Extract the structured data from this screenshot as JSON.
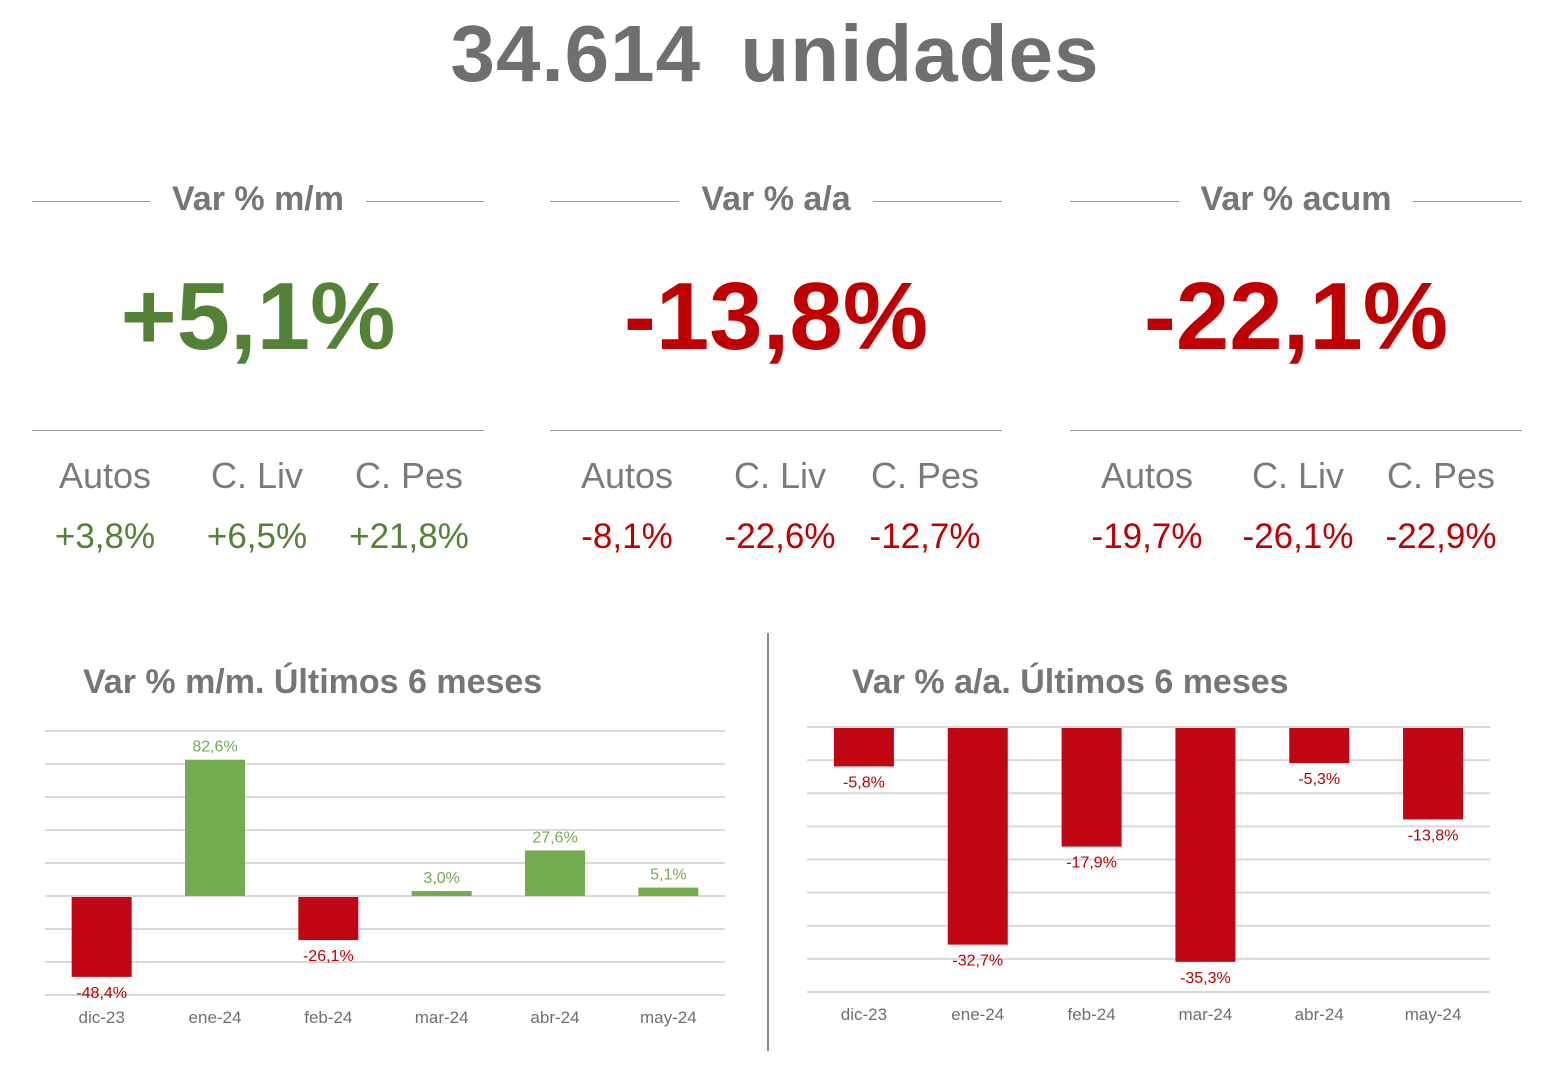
{
  "header": {
    "title": "34.614  unidades"
  },
  "panels": [
    {
      "title": "Var % m/m",
      "value": "+5,1%",
      "tone": "green",
      "items": [
        {
          "label": "Autos",
          "value": "+3,8%"
        },
        {
          "label": "C. Liv",
          "value": "+6,5%"
        },
        {
          "label": "C. Pes",
          "value": "+21,8%"
        }
      ]
    },
    {
      "title": "Var % a/a",
      "value": "-13,8%",
      "tone": "red",
      "items": [
        {
          "label": "Autos",
          "value": "-8,1%"
        },
        {
          "label": "C. Liv",
          "value": "-22,6%"
        },
        {
          "label": "C. Pes",
          "value": "-12,7%"
        }
      ]
    },
    {
      "title": "Var % acum",
      "value": "-22,1%",
      "tone": "red",
      "items": [
        {
          "label": "Autos",
          "value": "-19,7%"
        },
        {
          "label": "C. Liv",
          "value": "-26,1%"
        },
        {
          "label": "C. Pes",
          "value": "-22,9%"
        }
      ]
    }
  ],
  "colors": {
    "positive_bar": "#72ac4d",
    "negative_bar": "#c00612",
    "positive_text": "#72ac4d",
    "negative_text": "#c00000",
    "grid": "#d9d9d9",
    "axis_text": "#6f6f6f"
  },
  "chart_data": [
    {
      "type": "bar",
      "title": "Var % m/m. Últimos 6 meses",
      "xlabel": "",
      "ylabel": "",
      "categories": [
        "dic-23",
        "ene-24",
        "feb-24",
        "mar-24",
        "abr-24",
        "may-24"
      ],
      "values": [
        -48.4,
        82.6,
        -26.1,
        3.0,
        27.6,
        5.1
      ],
      "labels": [
        "-48,4%",
        "82,6%",
        "-26,1%",
        "3,0%",
        "27,6%",
        "5,1%"
      ],
      "ylim": [
        -60,
        100
      ],
      "grid_step": 20,
      "grid": true
    },
    {
      "type": "bar",
      "title": "Var % a/a. Últimos 6 meses",
      "xlabel": "",
      "ylabel": "",
      "categories": [
        "dic-23",
        "ene-24",
        "feb-24",
        "mar-24",
        "abr-24",
        "may-24"
      ],
      "values": [
        -5.8,
        -32.7,
        -17.9,
        -35.3,
        -5.3,
        -13.8
      ],
      "labels": [
        "-5,8%",
        "-32,7%",
        "-17,9%",
        "-35,3%",
        "-5,3%",
        "-13,8%"
      ],
      "ylim": [
        -40,
        0
      ],
      "grid_step": 5,
      "grid": true
    }
  ]
}
